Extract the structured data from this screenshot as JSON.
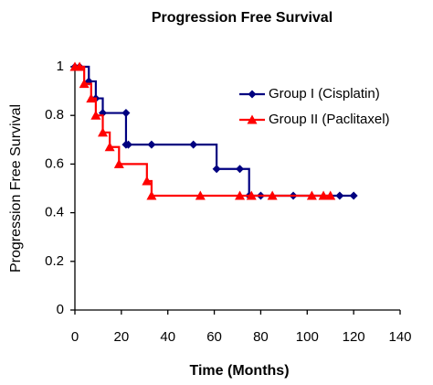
{
  "chart_data": {
    "type": "step",
    "title": "Progression Free Survival",
    "x_label": "Time (Months)",
    "y_label": "Progression Free Survival",
    "xlim": [
      0,
      140
    ],
    "xticks": [
      0,
      20,
      40,
      60,
      80,
      100,
      120,
      140
    ],
    "ylim": [
      0,
      1
    ],
    "yticks": [
      0,
      0.2,
      0.4,
      0.6,
      0.8,
      1
    ],
    "grid": false,
    "legend": "right",
    "series": [
      {
        "name": "Group I (Cisplatin)",
        "color": "#000080",
        "marker": "diamond",
        "x": [
          0,
          2,
          6,
          9,
          12,
          22,
          22,
          23,
          33,
          51,
          61,
          71,
          75,
          80,
          94,
          114,
          120
        ],
        "values": [
          1,
          1,
          0.94,
          0.87,
          0.81,
          0.81,
          0.68,
          0.68,
          0.68,
          0.68,
          0.58,
          0.58,
          0.47,
          0.47,
          0.47,
          0.47,
          0.47
        ]
      },
      {
        "name": "Group II (Paclitaxel)",
        "color": "#ff0000",
        "marker": "triangle",
        "x": [
          0,
          2,
          4,
          7,
          9,
          12,
          15,
          19,
          31,
          33,
          54,
          71,
          76,
          85,
          102,
          107,
          110
        ],
        "values": [
          1,
          1,
          0.93,
          0.87,
          0.8,
          0.73,
          0.67,
          0.6,
          0.53,
          0.47,
          0.47,
          0.47,
          0.47,
          0.47,
          0.47,
          0.47,
          0.47
        ]
      }
    ]
  }
}
